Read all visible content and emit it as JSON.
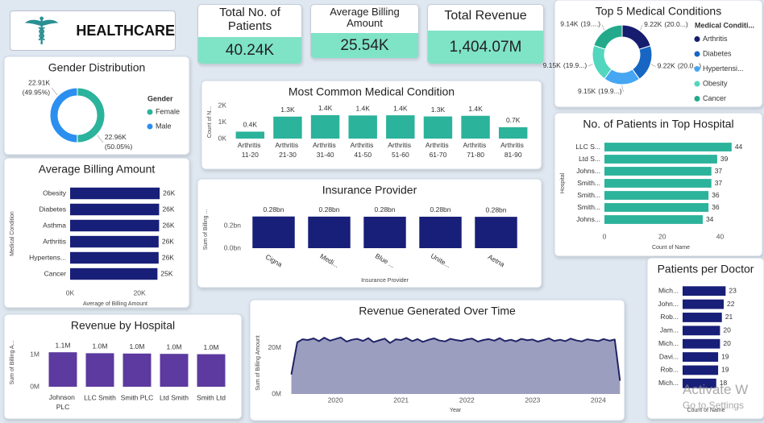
{
  "header": {
    "title": "HEALTHCARE"
  },
  "kpis": [
    {
      "label": "Total No. of Patients",
      "value": "40.24K"
    },
    {
      "label": "Average Billing Amount",
      "value": "25.54K"
    },
    {
      "label": "Total Revenue",
      "value": "1,404.07M"
    }
  ],
  "watermark": {
    "line1": "Activate W",
    "line2": "Go to Settings"
  },
  "chart_data": [
    {
      "type": "donut",
      "title": "Gender Distribution",
      "legend_title": "Gender",
      "categories": [
        "Female",
        "Male"
      ],
      "values": [
        22960,
        22910
      ],
      "value_labels": [
        "22.96K",
        "22.91K"
      ],
      "shares": [
        50.05,
        49.95
      ],
      "share_labels": [
        "(50.05%)",
        "(49.95%)"
      ],
      "colors": [
        "#2bb39b",
        "#2b8ff0"
      ]
    },
    {
      "type": "donut",
      "title": "Top 5 Medical Conditions",
      "legend_title": "Medical Conditi...",
      "categories": [
        "Arthritis",
        "Diabetes",
        "Hypertensi...",
        "Obesity",
        "Cancer"
      ],
      "values": [
        9220,
        9220,
        9150,
        9150,
        9140
      ],
      "value_labels": [
        "9.22K",
        "9.22K",
        "9.15K",
        "9.15K",
        "9.14K"
      ],
      "shares": [
        20.09,
        20.09,
        19.94,
        19.94,
        19.92
      ],
      "share_labels": [
        "(20.0...)",
        "(20.0...)",
        "(19.9...)",
        "(19.9...)",
        "(19....)"
      ],
      "colors": [
        "#161c6e",
        "#1766c4",
        "#45a6f2",
        "#52d6bd",
        "#23a98b"
      ]
    },
    {
      "type": "bar",
      "title": "Most Common Medical Condition",
      "ylabel": "Count of N...",
      "categories": [
        "Arthritis 11-20",
        "Arthritis 21-30",
        "Arthritis 31-40",
        "Arthritis 41-50",
        "Arthritis 51-60",
        "Arthritis 61-70",
        "Arthritis 71-80",
        "Arthritis 81-90"
      ],
      "values": [
        420,
        1330,
        1420,
        1400,
        1410,
        1340,
        1380,
        690
      ],
      "value_labels": [
        "0.4K",
        "1.3K",
        "1.4K",
        "1.4K",
        "1.4K",
        "1.3K",
        "1.4K",
        "0.7K"
      ],
      "color": "#2bb39b",
      "ylim": [
        0,
        2000
      ],
      "yticks": [
        {
          "value": 0,
          "label": "0K"
        },
        {
          "value": 1000,
          "label": "1K"
        },
        {
          "value": 2000,
          "label": "2K"
        }
      ]
    },
    {
      "type": "hbar",
      "title": "No. of Patients in Top Hospital",
      "ylabel": "Hospital",
      "xlabel": "Count of Name",
      "categories": [
        "LLC S...",
        "Ltd S...",
        "Johns...",
        "Smith...",
        "Smith...",
        "Smith...",
        "Johns..."
      ],
      "values": [
        44,
        39,
        37,
        37,
        36,
        36,
        34
      ],
      "color": "#2bb39b",
      "xlim": [
        0,
        46
      ],
      "xticks": [
        0,
        20,
        40
      ]
    },
    {
      "type": "hbar",
      "title": "Average Billing Amount",
      "ylabel": "Medical Condition",
      "xlabel": "Average of Billing Amount",
      "categories": [
        "Obesity",
        "Diabetes",
        "Asthma",
        "Arthritis",
        "Hypertens...",
        "Cancer"
      ],
      "values": [
        25800,
        25640,
        25640,
        25500,
        25500,
        25160
      ],
      "value_labels": [
        "26K",
        "26K",
        "26K",
        "26K",
        "26K",
        "25K"
      ],
      "color": "#181f78",
      "xlim": [
        0,
        26000
      ],
      "xticks": [
        {
          "value": 0,
          "label": "0K"
        },
        {
          "value": 20000,
          "label": "20K"
        }
      ]
    },
    {
      "type": "bar",
      "title": "Insurance Provider",
      "ylabel": "Sum of Billing ...",
      "xlabel": "Insurance Provider",
      "categories": [
        "Cigna",
        "Medi...",
        "Blue ...",
        "Unite...",
        "Aetna"
      ],
      "values": [
        282000000,
        281000000,
        280000000,
        280000000,
        279000000
      ],
      "value_labels": [
        "0.28bn",
        "0.28bn",
        "0.28bn",
        "0.28bn",
        "0.28bn"
      ],
      "color": "#181f78",
      "ylim": [
        0,
        330000000
      ],
      "yticks": [
        {
          "value": 0,
          "label": "0.0bn"
        },
        {
          "value": 200000000,
          "label": "0.2bn"
        }
      ]
    },
    {
      "type": "area",
      "title": "Revenue Generated Over Time",
      "xlabel": "Year",
      "ylabel": "Sum of Billing Amount",
      "x": [
        2019.33,
        2019.42,
        2019.5,
        2019.58,
        2019.67,
        2019.75,
        2019.83,
        2019.92,
        2020,
        2020.08,
        2020.17,
        2020.25,
        2020.33,
        2020.42,
        2020.5,
        2020.58,
        2020.67,
        2020.75,
        2020.83,
        2020.92,
        2021,
        2021.08,
        2021.17,
        2021.25,
        2021.33,
        2021.42,
        2021.5,
        2021.58,
        2021.67,
        2021.75,
        2021.83,
        2021.92,
        2022,
        2022.08,
        2022.17,
        2022.25,
        2022.33,
        2022.42,
        2022.5,
        2022.58,
        2022.67,
        2022.75,
        2022.83,
        2022.92,
        2023,
        2023.08,
        2023.17,
        2023.25,
        2023.33,
        2023.42,
        2023.5,
        2023.58,
        2023.67,
        2023.75,
        2023.83,
        2023.92,
        2024,
        2024.08,
        2024.17,
        2024.25,
        2024.33
      ],
      "values": [
        8500000,
        22500000,
        23800000,
        23500000,
        24200000,
        23000000,
        24500000,
        23200000,
        23900000,
        24600000,
        22800000,
        23600000,
        24000000,
        23100000,
        24300000,
        22600000,
        23400000,
        24100000,
        22200000,
        23800000,
        23500000,
        24400000,
        23000000,
        23900000,
        22700000,
        23600000,
        24200000,
        23300000,
        22900000,
        24000000,
        23500000,
        23100000,
        23800000,
        24100000,
        22800000,
        23500000,
        23900000,
        23200000,
        24300000,
        23000000,
        23600000,
        22900000,
        24000000,
        23400000,
        23700000,
        22800000,
        23500000,
        24200000,
        23100000,
        23600000,
        23000000,
        24100000,
        23300000,
        22900000,
        23800000,
        23400000,
        23000000,
        23900000,
        23200000,
        23700000,
        5800000
      ],
      "color": "#1f2366",
      "fill_color": "#9c9ebf",
      "xlim": [
        2019.25,
        2024.4
      ],
      "xticks": [
        2020,
        2021,
        2022,
        2023,
        2024
      ],
      "ylim": [
        0,
        27000000
      ],
      "yticks": [
        {
          "value": 0,
          "label": "0M"
        },
        {
          "value": 20000000,
          "label": "20M"
        }
      ]
    },
    {
      "type": "bar",
      "title": "Revenue by Hospital",
      "ylabel": "Sum of Billing A...",
      "categories": [
        "Johnson PLC",
        "LLC Smith",
        "Smith PLC",
        "Ltd Smith",
        "Smith Ltd"
      ],
      "values": [
        1070000,
        1040000,
        1030000,
        1020000,
        1010000
      ],
      "value_labels": [
        "1.1M",
        "1.0M",
        "1.0M",
        "1.0M",
        "1.0M"
      ],
      "color": "#5c3a9f",
      "ylim": [
        0,
        1500000
      ],
      "yticks": [
        {
          "value": 0,
          "label": "0M"
        },
        {
          "value": 1000000,
          "label": "1M"
        }
      ]
    },
    {
      "type": "hbar",
      "title": "Patients per Doctor",
      "xlabel": "Count of Name",
      "categories": [
        "Mich...",
        "John...",
        "Rob...",
        "Jam...",
        "Mich...",
        "Davi...",
        "Rob...",
        "Mich..."
      ],
      "values": [
        23,
        22,
        21,
        20,
        20,
        19,
        19,
        18
      ],
      "color": "#181f78",
      "xlim": [
        0,
        25
      ]
    }
  ]
}
